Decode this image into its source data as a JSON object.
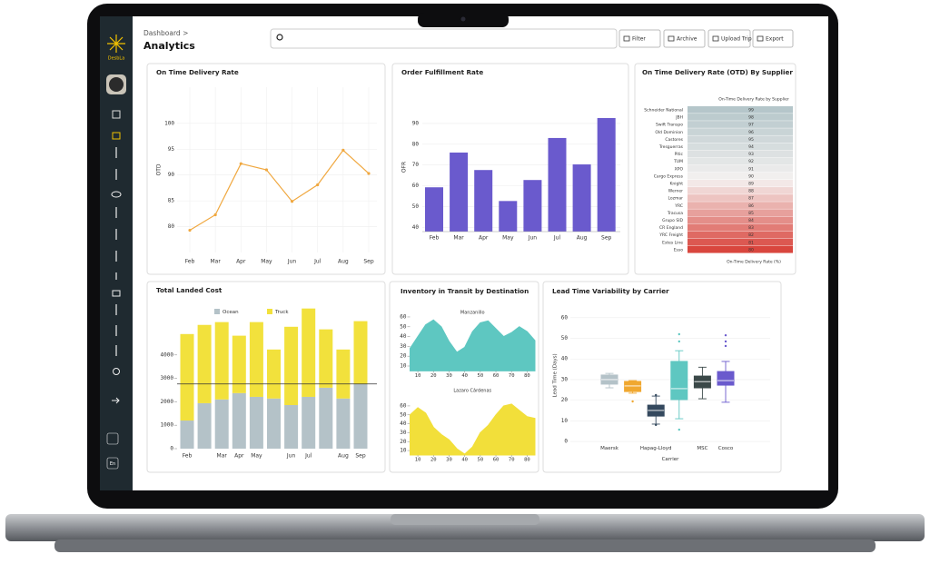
{
  "sidebar": {
    "brand": "DesbLa",
    "language": "En"
  },
  "header": {
    "breadcrumb": "Dashboard >",
    "title": "Analytics",
    "buttons": [
      "Filter",
      "Archive",
      "Upload Trip",
      "Export"
    ]
  },
  "chart_data": [
    {
      "type": "line",
      "title": "On Time Delivery Rate",
      "ylabel": "OTD",
      "categories": [
        "Feb",
        "Mar",
        "Apr",
        "May",
        "Jun",
        "Jul",
        "Aug",
        "Sep"
      ],
      "values": [
        79.3,
        82.3,
        92.2,
        91,
        84.9,
        88.1,
        94.8,
        90.3
      ],
      "color": "#f0a840",
      "ylim": [
        75,
        107
      ],
      "yticks": [
        80,
        85,
        90,
        95,
        100
      ],
      "grid": true
    },
    {
      "type": "bar",
      "title": "Order Fulfillment Rate",
      "ylabel": "OFR",
      "categories": [
        "Feb",
        "Mar",
        "Apr",
        "May",
        "Jun",
        "Jul",
        "Aug",
        "Sep"
      ],
      "values": [
        59.3,
        76,
        67.6,
        52.7,
        62.8,
        83,
        70.3,
        92.6
      ],
      "color": "#6a5acd",
      "ylim": [
        38,
        100
      ],
      "yticks": [
        40,
        50,
        60,
        70,
        80,
        90
      ],
      "grid": true
    },
    {
      "type": "heatmap",
      "title": "On Time Delivery Rate (OTD) By Supplier",
      "subtitle": "On-Time Delivery Rate by Supplier",
      "xlabel": "On-Time Delivery Rate (%)",
      "categories": [
        "Schneider National",
        "JBH",
        "Swift Transpo",
        "Old Dominion",
        "Castores",
        "Tresguerras",
        "Pitic",
        "TUM",
        "XPO",
        "Cargo Express",
        "Knight",
        "Werner",
        "Lozmar",
        "YRC",
        "Tracusa",
        "Grupo SID",
        "CR England",
        "YRC Freight",
        "Estes Line",
        "Esso"
      ],
      "values": [
        99,
        98,
        97,
        96,
        95,
        94,
        93,
        92,
        91,
        90,
        89,
        88,
        87,
        86,
        85,
        84,
        83,
        82,
        81,
        80
      ],
      "colorscale": [
        "#d9463e",
        "#f4f1f0",
        "#b5c6ca"
      ]
    },
    {
      "type": "stacked_bar",
      "title": "Total Landed Cost",
      "categories": [
        "Feb",
        null,
        "Mar",
        "Apr",
        "May",
        null,
        "Jun",
        "Jul",
        null,
        "Aug",
        "Sep"
      ],
      "series": [
        {
          "name": "Ocean",
          "color": "#b4c2c8",
          "values": [
            1200,
            1940,
            2100,
            2370,
            2210,
            2140,
            1860,
            2210,
            2600,
            2140,
            2760
          ]
        },
        {
          "name": "Truck",
          "color": "#f2e13c",
          "values": [
            3690,
            3340,
            3300,
            2450,
            3190,
            2090,
            3340,
            3770,
            2490,
            2090,
            2680
          ]
        }
      ],
      "reference_line": 2760,
      "ylim": [
        0,
        6200
      ],
      "yticks": [
        0,
        1000,
        2000,
        3000,
        4000
      ]
    },
    {
      "type": "area",
      "title": "Inventory in Transit by Destination",
      "xlim": [
        5,
        85
      ],
      "xticks": [
        10,
        20,
        30,
        40,
        50,
        60,
        70,
        80
      ],
      "panels": [
        {
          "title": "Manzanillo",
          "color": "#5ec7c1",
          "x": [
            5,
            10,
            15,
            20,
            25,
            30,
            35,
            40,
            45,
            50,
            55,
            60,
            65,
            70,
            75,
            80,
            85
          ],
          "values": [
            28,
            40,
            52,
            57,
            50,
            35,
            24,
            29,
            45,
            54,
            56,
            48,
            40,
            44,
            50,
            45,
            36
          ],
          "ylim": [
            5,
            62
          ],
          "yticks": [
            10,
            20,
            30,
            40,
            50,
            60
          ]
        },
        {
          "title": "Lazaro Cárdenas",
          "color": "#f2df3a",
          "x": [
            5,
            10,
            15,
            20,
            25,
            30,
            35,
            40,
            45,
            50,
            55,
            60,
            65,
            70,
            75,
            80,
            85
          ],
          "values": [
            50,
            58,
            52,
            36,
            28,
            22,
            12,
            6,
            14,
            30,
            38,
            50,
            60,
            62,
            55,
            48,
            46
          ],
          "ylim": [
            5,
            65
          ],
          "yticks": [
            10,
            20,
            30,
            40,
            50,
            60
          ]
        }
      ]
    },
    {
      "type": "box",
      "title": "Lead Time Variability by Carrier",
      "xlabel": "Carrier",
      "ylabel": "Lead Time (Days)",
      "categories": [
        "Maersk",
        null,
        "Hapag-Lloyd",
        null,
        "MSC",
        "Cosco"
      ],
      "boxes": [
        {
          "color": "#b4c2c8",
          "min": 26,
          "q1": 27.8,
          "median": 30,
          "q3": 32.2,
          "max": 33,
          "outliers": []
        },
        {
          "color": "#f0a830",
          "min": 23.4,
          "q1": 24.2,
          "median": 26.9,
          "q3": 29.1,
          "max": 29.5,
          "outliers": [
            19.4
          ]
        },
        {
          "color": "#34495e",
          "min": 8.4,
          "q1": 12.3,
          "median": 15,
          "q3": 17.6,
          "max": 22,
          "outliers": [
            22.5,
            8
          ]
        },
        {
          "color": "#5ec7c1",
          "min": 11,
          "q1": 20.3,
          "median": 25.6,
          "q3": 38.8,
          "max": 44,
          "outliers": [
            52,
            48.5,
            5.7
          ]
        },
        {
          "color": "#3b4848",
          "min": 20.7,
          "q1": 26,
          "median": 29,
          "q3": 31.7,
          "max": 36,
          "outliers": []
        },
        {
          "color": "#6a5acd",
          "min": 19,
          "q1": 27.3,
          "median": 29.5,
          "q3": 33.9,
          "max": 38.8,
          "outliers": [
            51.5,
            48.5,
            46.3
          ]
        }
      ],
      "ylim": [
        -1,
        65
      ],
      "yticks": [
        0,
        10,
        20,
        30,
        40,
        50,
        60
      ],
      "grid": true
    }
  ]
}
